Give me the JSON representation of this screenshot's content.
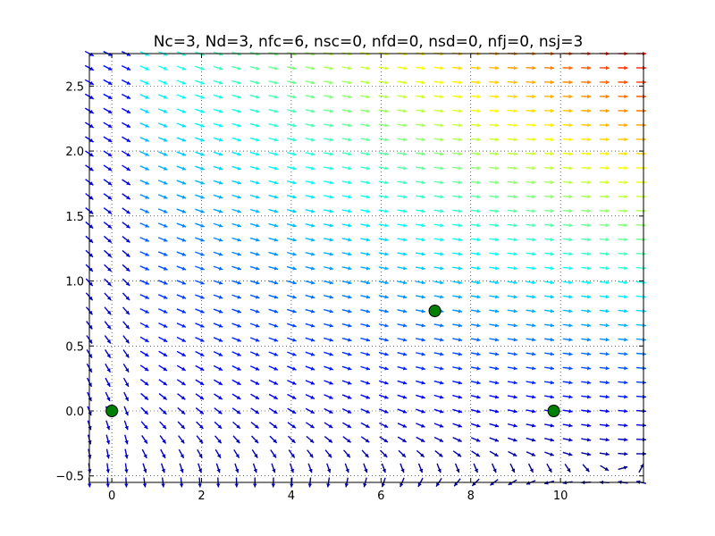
{
  "chart_data": {
    "type": "quiver",
    "title": "Nc=3, Nd=3, nfc=6, nsc=0, nfd=0, nsd=0, nfj=0, nsj=3",
    "xlabel": "",
    "ylabel": "",
    "xlim": [
      -0.5,
      11.85
    ],
    "ylim": [
      -0.55,
      2.75
    ],
    "xticks": [
      0,
      2,
      4,
      6,
      8,
      10
    ],
    "yticks": [
      -0.5,
      0.0,
      0.5,
      1.0,
      1.5,
      2.0,
      2.5
    ],
    "xtick_labels": [
      "0",
      "2",
      "4",
      "6",
      "8",
      "10"
    ],
    "ytick_labels": [
      "−0.5",
      "0.0",
      "0.5",
      "1.0",
      "1.5",
      "2.0",
      "2.5"
    ],
    "grid": true,
    "grid_style": "dotted",
    "colormap": "jet",
    "colormap_colors": [
      "#00007f",
      "#0000ff",
      "#007fff",
      "#00ffff",
      "#7fff7f",
      "#ffff00",
      "#ff7f00",
      "#ff0000"
    ],
    "vector_field": {
      "x_range": [
        -0.5,
        11.8
      ],
      "y_range": [
        -0.55,
        2.75
      ],
      "columns": 31,
      "rows": 31,
      "description_of_flow": "dominant rightward flow with near-vertical downward arrows in upper-left region; magnitude increases toward upper right"
    },
    "points": [
      {
        "x": 0.0,
        "y": 0.0
      },
      {
        "x": 7.2,
        "y": 0.77
      },
      {
        "x": 9.85,
        "y": 0.0
      }
    ],
    "point_color": "#008000",
    "point_edge_color": "#000000"
  }
}
